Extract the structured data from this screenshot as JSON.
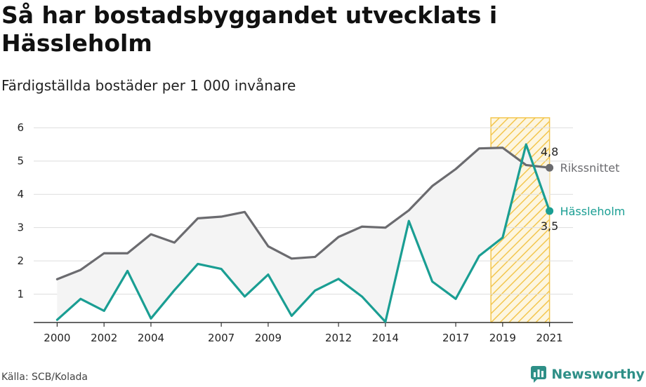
{
  "header": {
    "title": "Så har bostadsbyggandet utvecklats i Hässleholm",
    "subtitle": "Färdigställda bostäder per 1 000 invånare"
  },
  "footer": {
    "source": "Källa: SCB/Kolada",
    "brand": "Newsworthy"
  },
  "colors": {
    "hassleholm": "#1a9e93",
    "riket": "#6b6b6f",
    "highlight": "#f3c64e",
    "grid": "#dddddd",
    "band": "#f4f4f4"
  },
  "chart_data": {
    "type": "line",
    "title": "Så har bostadsbyggandet utvecklats i Hässleholm",
    "subtitle": "Färdigställda bostäder per 1 000 invånare",
    "x": [
      2000,
      2001,
      2002,
      2003,
      2004,
      2005,
      2006,
      2007,
      2008,
      2009,
      2010,
      2011,
      2012,
      2013,
      2014,
      2015,
      2016,
      2017,
      2018,
      2019,
      2020,
      2021
    ],
    "x_tick_labels": [
      "2000",
      "2002",
      "2004",
      "2007",
      "2009",
      "2012",
      "2014",
      "2017",
      "2019",
      "2021"
    ],
    "x_ticks": [
      2000,
      2002,
      2004,
      2007,
      2009,
      2012,
      2014,
      2017,
      2019,
      2021
    ],
    "y_ticks": [
      1,
      2,
      3,
      4,
      5,
      6
    ],
    "y_tick_labels": [
      "1",
      "2",
      "3",
      "4",
      "5",
      "6"
    ],
    "xlim": [
      1999,
      2022
    ],
    "ylim": [
      0.15,
      6.3
    ],
    "grid": true,
    "highlight_range": [
      2018.5,
      2021
    ],
    "series": [
      {
        "name": "Rikssnittet",
        "end_value_label": "4,8",
        "values": [
          1.45,
          1.73,
          2.23,
          2.23,
          2.8,
          2.55,
          3.28,
          3.33,
          3.47,
          2.44,
          2.07,
          2.12,
          2.72,
          3.03,
          3.0,
          3.52,
          4.25,
          4.76,
          5.38,
          5.4,
          4.88,
          4.8
        ]
      },
      {
        "name": "Hässleholm",
        "end_value_label": "3,5",
        "values": [
          0.23,
          0.86,
          0.5,
          1.7,
          0.27,
          1.12,
          1.91,
          1.76,
          0.93,
          1.59,
          0.35,
          1.11,
          1.46,
          0.93,
          0.17,
          3.2,
          1.38,
          0.86,
          2.15,
          2.7,
          5.5,
          3.5
        ]
      }
    ]
  }
}
